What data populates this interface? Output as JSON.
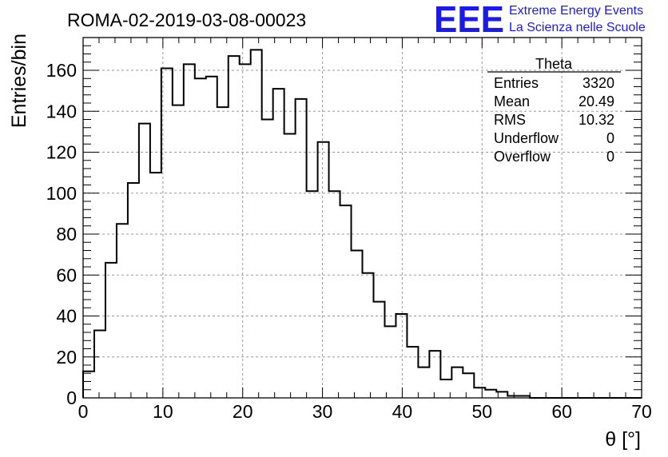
{
  "chart_data": {
    "type": "histogram",
    "title": "ROMA-02-2019-03-08-00023",
    "xlabel": "θ [°]",
    "ylabel": "Entries/bin",
    "xlim": [
      0,
      70
    ],
    "ylim": [
      0,
      176
    ],
    "x_ticks": [
      0,
      10,
      20,
      30,
      40,
      50,
      60,
      70
    ],
    "y_ticks": [
      0,
      20,
      40,
      60,
      80,
      100,
      120,
      140,
      160
    ],
    "grid": true,
    "bin_width": 1.4,
    "bin_start": 0,
    "values": [
      13,
      33,
      66,
      85,
      105,
      134,
      110,
      161,
      143,
      163,
      156,
      157,
      142,
      167,
      163,
      170,
      136,
      151,
      129,
      146,
      101,
      125,
      101,
      94,
      72,
      61,
      47,
      35,
      41,
      25,
      15,
      23,
      9,
      15,
      12,
      5,
      4,
      3,
      1,
      1,
      0,
      0,
      0,
      0,
      0,
      0,
      0,
      0,
      0,
      0
    ],
    "stats": {
      "name": "Theta",
      "rows": [
        {
          "label": "Entries",
          "value": "3320"
        },
        {
          "label": "Mean",
          "value": "20.49"
        },
        {
          "label": "RMS",
          "value": "10.32"
        },
        {
          "label": "Underflow",
          "value": "0"
        },
        {
          "label": "Overflow",
          "value": "0"
        }
      ]
    }
  },
  "logo": {
    "mark": "EEE",
    "line1": "Extreme Energy Events",
    "line2": "La Scienza nelle Scuole",
    "color": "#1a1aee"
  },
  "colors": {
    "line": "#000000",
    "grid": "#9a9a9a"
  }
}
